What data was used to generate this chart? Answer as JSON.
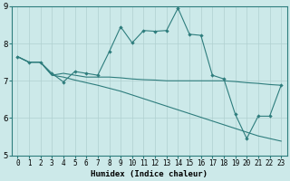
{
  "xlabel": "Humidex (Indice chaleur)",
  "bg_color": "#cce9e9",
  "line_color": "#2e7d7d",
  "grid_color": "#b0d0d0",
  "xlim": [
    -0.5,
    23.5
  ],
  "ylim": [
    5,
    9
  ],
  "yticks": [
    5,
    6,
    7,
    8,
    9
  ],
  "xticks": [
    0,
    1,
    2,
    3,
    4,
    5,
    6,
    7,
    8,
    9,
    10,
    11,
    12,
    13,
    14,
    15,
    16,
    17,
    18,
    19,
    20,
    21,
    22,
    23
  ],
  "series_main": [
    7.65,
    7.5,
    7.5,
    7.2,
    6.97,
    7.25,
    7.2,
    7.15,
    7.78,
    8.45,
    8.02,
    8.35,
    8.33,
    8.35,
    8.95,
    8.25,
    8.22,
    7.15,
    7.05,
    6.1,
    5.45,
    6.05,
    6.05,
    6.88
  ],
  "series_flat": [
    7.65,
    7.5,
    7.5,
    7.15,
    7.2,
    7.15,
    7.1,
    7.1,
    7.1,
    7.08,
    7.05,
    7.03,
    7.02,
    7.0,
    7.0,
    7.0,
    7.0,
    7.0,
    7.0,
    6.98,
    6.95,
    6.93,
    6.9,
    6.88
  ],
  "series_diag": [
    7.65,
    7.5,
    7.5,
    7.15,
    7.1,
    7.02,
    6.95,
    6.88,
    6.8,
    6.72,
    6.62,
    6.52,
    6.42,
    6.32,
    6.22,
    6.12,
    6.02,
    5.92,
    5.82,
    5.72,
    5.62,
    5.52,
    5.45,
    5.38
  ]
}
